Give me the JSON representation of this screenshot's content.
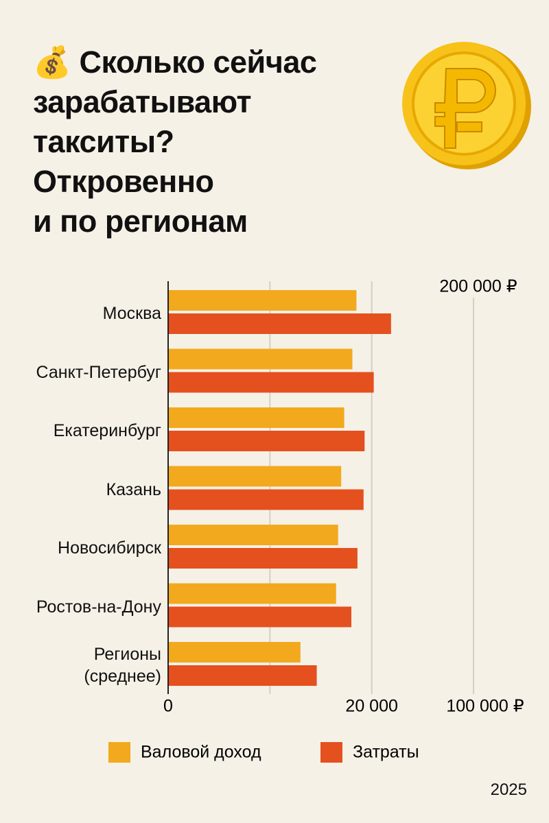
{
  "chart_data": {
    "type": "bar",
    "orientation": "horizontal",
    "title": "💰 Сколько сейчас\nзарабатывают\nтакситы?\nОткровенно\nи по регионам",
    "categories": [
      "Москва",
      "Санкт-Петербуг",
      "Екатеринбург",
      "Казань",
      "Новосибирск",
      "Ростов-на-Дону",
      "Регионы\n(среднее)"
    ],
    "series": [
      {
        "name": "Валовой доход",
        "color": "#f2a91e",
        "values": [
          18500,
          18100,
          17300,
          17000,
          16700,
          16500,
          13000
        ]
      },
      {
        "name": "Затраты",
        "color": "#e5501f",
        "values": [
          21900,
          20200,
          19300,
          19200,
          18600,
          18000,
          14600
        ]
      }
    ],
    "xlim": [
      0,
      30000
    ],
    "xticks": [
      0,
      {
        "value": 20000,
        "label": "20 000"
      }
    ],
    "xgrid": [
      10000,
      20000,
      30000
    ],
    "annotations": [
      "200 000 ₽",
      "100 000 ₽"
    ],
    "footer": "2025"
  }
}
